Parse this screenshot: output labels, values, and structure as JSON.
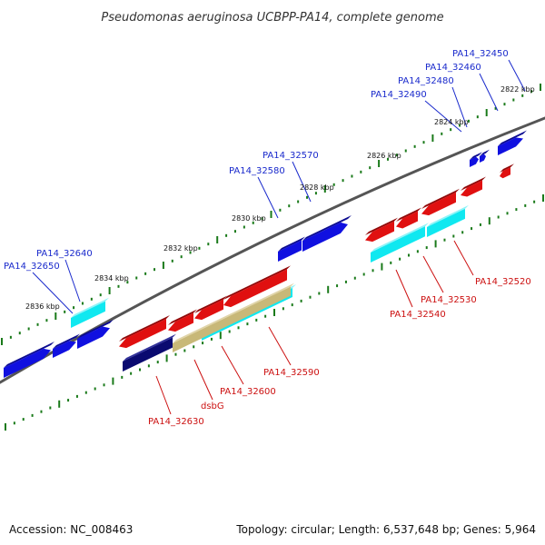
{
  "title": "Pseudomonas aeruginosa UCBPP-PA14, complete genome",
  "footer": {
    "accession": "Accession: NC_008463",
    "topology": "Topology: circular; Length: 6,537,648 bp; Genes: 5,964"
  },
  "colors": {
    "forward_gene": "#1010e0",
    "forward_gene_dark": "#0b0b90",
    "reverse_gene": "#e01010",
    "reverse_gene_dark": "#900808",
    "cds_cyan": "#10e8f0",
    "cds_navy": "#0a0a70",
    "cds_tan": "#c8b878",
    "tick_green": "#1a7a1a",
    "backbone": "#555555"
  },
  "ticks": [
    {
      "label": "2822 kbp"
    },
    {
      "label": "2824 kbp"
    },
    {
      "label": "2826 kbp"
    },
    {
      "label": "2828 kbp"
    },
    {
      "label": "2830 kbp"
    },
    {
      "label": "2832 kbp"
    },
    {
      "label": "2834 kbp"
    },
    {
      "label": "2836 kbp"
    }
  ],
  "labels_top": [
    {
      "text": "PA14_32450"
    },
    {
      "text": "PA14_32460"
    },
    {
      "text": "PA14_32480"
    },
    {
      "text": "PA14_32490"
    },
    {
      "text": "PA14_32570"
    },
    {
      "text": "PA14_32580"
    },
    {
      "text": "PA14_32640"
    },
    {
      "text": "PA14_32650"
    }
  ],
  "labels_bottom": [
    {
      "text": "PA14_32520"
    },
    {
      "text": "PA14_32530"
    },
    {
      "text": "PA14_32540"
    },
    {
      "text": "PA14_32590"
    },
    {
      "text": "PA14_32600"
    },
    {
      "text": "dsbG"
    },
    {
      "text": "PA14_32630"
    }
  ]
}
